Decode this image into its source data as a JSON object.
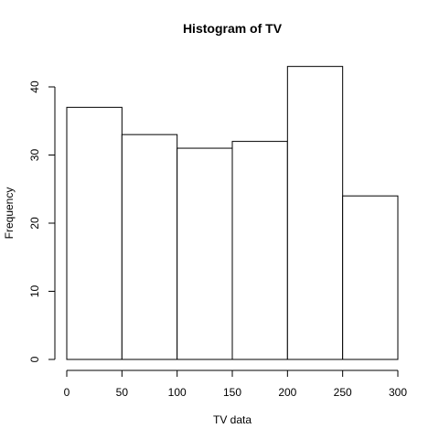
{
  "chart_data": {
    "type": "bar",
    "title": "Histogram of TV",
    "xlabel": "TV data",
    "ylabel": "Frequency",
    "bins": [
      [
        0,
        50
      ],
      [
        50,
        100
      ],
      [
        100,
        150
      ],
      [
        150,
        200
      ],
      [
        200,
        250
      ],
      [
        250,
        300
      ]
    ],
    "values": [
      37,
      33,
      31,
      32,
      43,
      24
    ],
    "xlim": [
      0,
      300
    ],
    "ylim": [
      0,
      43
    ],
    "x_ticks": [
      0,
      50,
      100,
      150,
      200,
      250,
      300
    ],
    "y_ticks": [
      0,
      10,
      20,
      30,
      40
    ],
    "grid": false,
    "bar_fill": "#ffffff",
    "bar_stroke": "#000000"
  }
}
